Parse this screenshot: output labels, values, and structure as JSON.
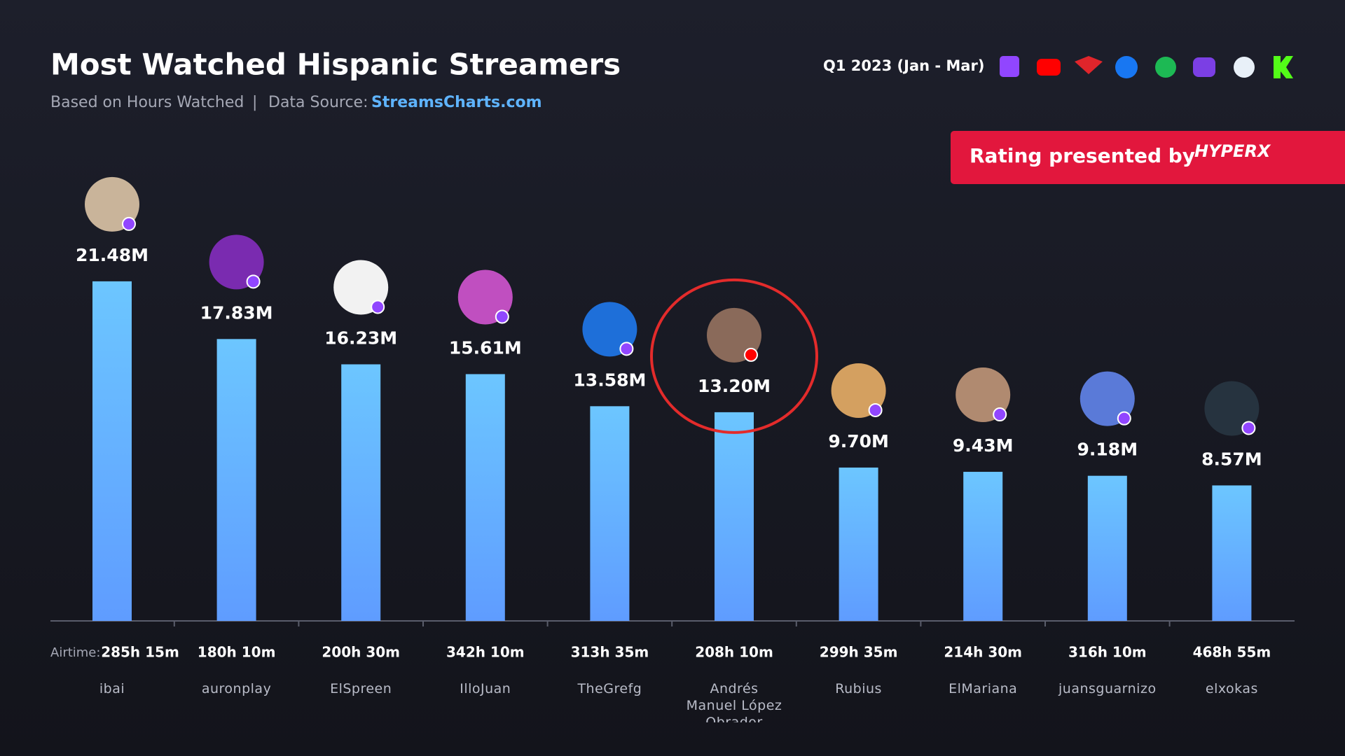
{
  "chart_data": {
    "type": "bar",
    "title": "Most Watched Hispanic Streamers",
    "subtitle": "Based on Hours Watched",
    "source_label": "Data Source:",
    "source": "StreamsCharts.com",
    "period": "Q1 2023 (Jan - Mar)",
    "sponsor_text": "Rating presented by",
    "sponsor": "HYPERX",
    "airtime_label": "Airtime:",
    "categories": [
      "ibai",
      "auronplay",
      "ElSpreen",
      "IlloJuan",
      "TheGrefg",
      "Andrés Manuel López Obrador",
      "Rubius",
      "ElMariana",
      "juansguarnizo",
      "elxokas"
    ],
    "values": [
      21.48,
      17.83,
      16.23,
      15.61,
      13.58,
      13.2,
      9.7,
      9.43,
      9.18,
      8.57
    ],
    "value_labels": [
      "21.48M",
      "17.83M",
      "16.23M",
      "15.61M",
      "13.58M",
      "13.20M",
      "9.70M",
      "9.43M",
      "9.18M",
      "8.57M"
    ],
    "airtime": [
      "285h 15m",
      "180h 10m",
      "200h 30m",
      "342h 10m",
      "313h 35m",
      "208h 10m",
      "299h 35m",
      "214h 30m",
      "316h 10m",
      "468h 55m"
    ],
    "color": "#66b8ff",
    "ylim": [
      0,
      24
    ]
  }
}
